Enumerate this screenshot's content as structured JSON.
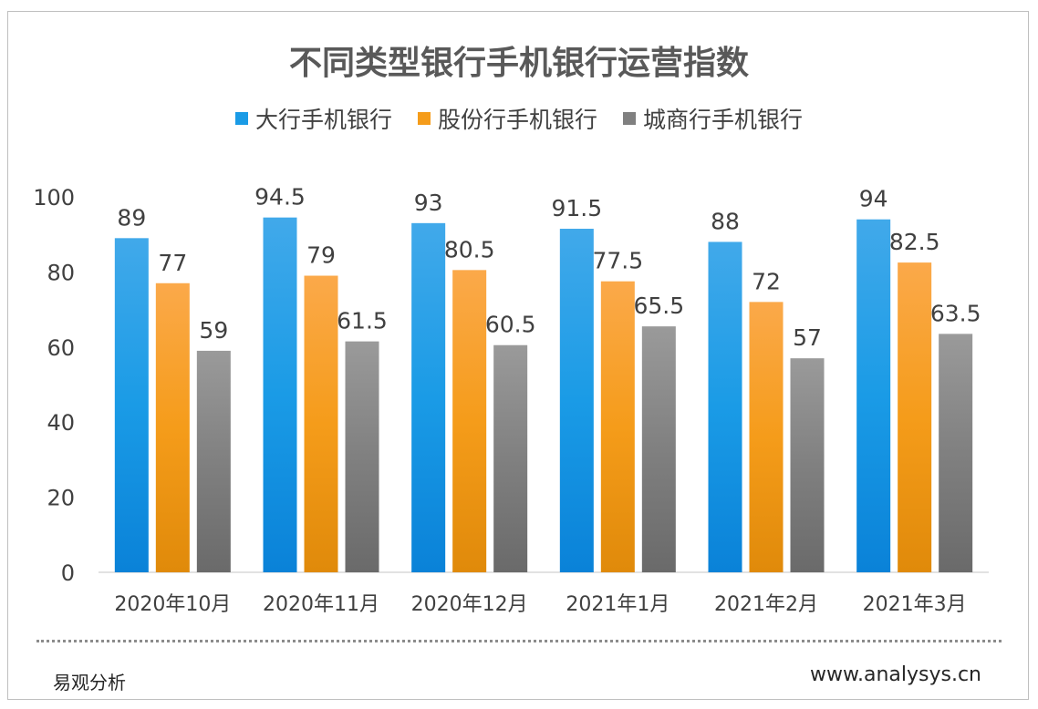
{
  "chart_data": {
    "type": "bar",
    "title": "不同类型银行手机银行运营指数",
    "categories": [
      "2020年10月",
      "2020年11月",
      "2020年12月",
      "2021年1月",
      "2021年2月",
      "2021年3月"
    ],
    "series": [
      {
        "name": "大行手机银行",
        "values": [
          89,
          94.5,
          93,
          91.5,
          88,
          94
        ],
        "color": "#1a9be6",
        "color_light": "#41a9ea",
        "color_dark": "#0a82d8"
      },
      {
        "name": "股份行手机银行",
        "values": [
          77,
          79,
          80.5,
          77.5,
          72,
          82.5
        ],
        "color": "#f59c1a",
        "color_light": "#fba94a",
        "color_dark": "#e08a0a"
      },
      {
        "name": "城商行手机银行",
        "values": [
          59,
          61.5,
          60.5,
          65.5,
          57,
          63.5
        ],
        "color": "#808080",
        "color_light": "#9a9a9a",
        "color_dark": "#6a6a6a"
      }
    ],
    "ylim": [
      0,
      100
    ],
    "yticks": [
      0,
      20,
      40,
      60,
      80,
      100
    ],
    "grid": false,
    "legend_position": "top-center",
    "xlabel": "",
    "ylabel": ""
  },
  "footer": {
    "source": "易观分析",
    "website": "www.analysys.cn"
  }
}
